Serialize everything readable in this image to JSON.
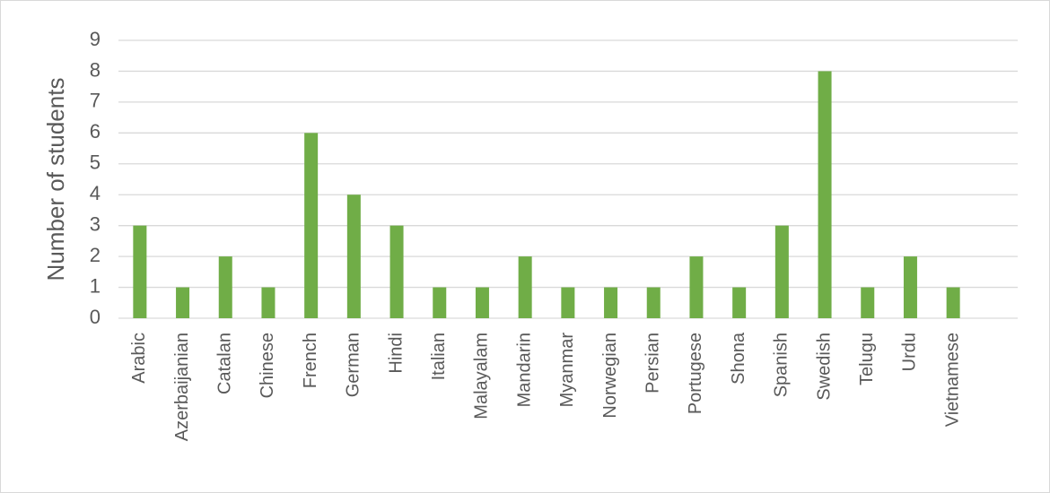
{
  "chart_data": {
    "type": "bar",
    "y_label": "Number of students",
    "categories": [
      "Arabic",
      "Azerbaijanian",
      "Catalan",
      "Chinese",
      "French",
      "German",
      "Hindi",
      "Italian",
      "Malayalam",
      "Mandarin",
      "Myanmar",
      "Norwegian",
      "Persian",
      "Portugese",
      "Shona",
      "Spanish",
      "Swedish",
      "Telugu",
      "Urdu",
      "Vietnamese"
    ],
    "values": [
      3,
      1,
      2,
      1,
      6,
      4,
      3,
      1,
      1,
      2,
      1,
      1,
      1,
      2,
      1,
      3,
      8,
      1,
      2,
      1
    ],
    "color": "#70ad47",
    "ylim": [
      0,
      9
    ],
    "yticks": [
      0,
      1,
      2,
      3,
      4,
      5,
      6,
      7,
      8,
      9
    ],
    "grid": true
  }
}
